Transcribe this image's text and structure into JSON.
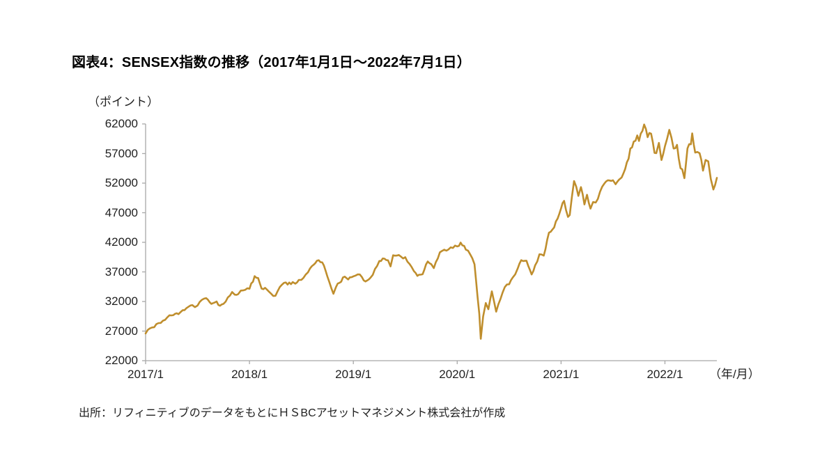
{
  "header": {
    "title": "図表4：SENSEX指数の推移（2017年1月1日～2022年7月1日）"
  },
  "source": "出所：リフィニティブのデータをもとにＨＳBCアセットマネジメント株式会社が作成",
  "chart_data": {
    "type": "line",
    "title": "図表4：SENSEX指数の推移（2017年1月1日～2022年7月1日）",
    "unit_label": "（ポイント）",
    "x_unit_label": "（年/月）",
    "ylim": [
      22000,
      62000
    ],
    "yticks": [
      62000,
      57000,
      52000,
      47000,
      42000,
      37000,
      32000,
      27000,
      22000
    ],
    "xticks": [
      {
        "label": "2017/1",
        "t": 0
      },
      {
        "label": "2018/1",
        "t": 12
      },
      {
        "label": "2019/1",
        "t": 24
      },
      {
        "label": "2020/1",
        "t": 36
      },
      {
        "label": "2021/1",
        "t": 48
      },
      {
        "label": "2022/1",
        "t": 60
      }
    ],
    "x_range_months": [
      0,
      66
    ],
    "x_start": "2017/1",
    "x_end": "2022/7",
    "grid": false,
    "legend": "none",
    "line_color": "#BF8E2D",
    "axis_color": "#A8A8A8",
    "text_color": "#1F1F1F",
    "series": [
      {
        "name": "SENSEX指数",
        "points_format": "[months_since_2017_01, index_points]",
        "points": [
          [
            0,
            26600
          ],
          [
            0.5,
            27460
          ],
          [
            1,
            27660
          ],
          [
            1.5,
            28350
          ],
          [
            2,
            28750
          ],
          [
            2.5,
            29320
          ],
          [
            3,
            29650
          ],
          [
            3.4,
            29920
          ],
          [
            3.8,
            29860
          ],
          [
            4.3,
            30540
          ],
          [
            4.7,
            30860
          ],
          [
            5,
            31150
          ],
          [
            5.4,
            31390
          ],
          [
            5.7,
            31050
          ],
          [
            6,
            31300
          ],
          [
            6.5,
            32280
          ],
          [
            7,
            32570
          ],
          [
            7.4,
            31900
          ],
          [
            7.8,
            31730
          ],
          [
            8.2,
            32000
          ],
          [
            8.6,
            31280
          ],
          [
            9,
            31600
          ],
          [
            9.5,
            32680
          ],
          [
            10,
            33600
          ],
          [
            10.3,
            33150
          ],
          [
            10.7,
            33250
          ],
          [
            11,
            33850
          ],
          [
            11.5,
            33960
          ],
          [
            12,
            34150
          ],
          [
            12.6,
            36280
          ],
          [
            13,
            35960
          ],
          [
            13.4,
            34180
          ],
          [
            14,
            34050
          ],
          [
            14.5,
            33320
          ],
          [
            15,
            32970
          ],
          [
            15.5,
            34430
          ],
          [
            16,
            35160
          ],
          [
            16.4,
            34860
          ],
          [
            17,
            35280
          ],
          [
            17.3,
            35010
          ],
          [
            17.7,
            35650
          ],
          [
            18,
            35660
          ],
          [
            18.5,
            36550
          ],
          [
            19,
            37600
          ],
          [
            19.8,
            38900
          ],
          [
            20.2,
            38650
          ],
          [
            20.6,
            38090
          ],
          [
            21,
            36230
          ],
          [
            21.7,
            33300
          ],
          [
            22,
            34450
          ],
          [
            22.4,
            35150
          ],
          [
            23,
            36200
          ],
          [
            23.4,
            35720
          ],
          [
            24,
            36250
          ],
          [
            24.5,
            36580
          ],
          [
            25,
            36100
          ],
          [
            25.4,
            35380
          ],
          [
            26,
            36050
          ],
          [
            26.5,
            37480
          ],
          [
            27,
            38850
          ],
          [
            27.4,
            39270
          ],
          [
            28,
            38960
          ],
          [
            28.3,
            37930
          ],
          [
            28.6,
            39810
          ],
          [
            29,
            39750
          ],
          [
            29.5,
            39590
          ],
          [
            30,
            39480
          ],
          [
            30.5,
            38340
          ],
          [
            31,
            37120
          ],
          [
            31.4,
            36330
          ],
          [
            32,
            36600
          ],
          [
            32.6,
            38760
          ],
          [
            33,
            38310
          ],
          [
            33.3,
            37650
          ],
          [
            34,
            40300
          ],
          [
            34.5,
            40750
          ],
          [
            35,
            40800
          ],
          [
            35.5,
            41050
          ],
          [
            36,
            41310
          ],
          [
            36.4,
            41950
          ],
          [
            37,
            40750
          ],
          [
            37.5,
            39960
          ],
          [
            38,
            38300
          ],
          [
            38.35,
            32780
          ],
          [
            38.55,
            29920
          ],
          [
            38.72,
            25700
          ],
          [
            39,
            29470
          ],
          [
            39.3,
            31740
          ],
          [
            39.6,
            30690
          ],
          [
            40,
            33720
          ],
          [
            40.5,
            30280
          ],
          [
            41,
            32420
          ],
          [
            41.5,
            34430
          ],
          [
            42,
            34910
          ],
          [
            42.4,
            36020
          ],
          [
            42.7,
            36580
          ],
          [
            43,
            37600
          ],
          [
            43.4,
            38990
          ],
          [
            44,
            38900
          ],
          [
            44.6,
            36560
          ],
          [
            45,
            38100
          ],
          [
            45.5,
            39980
          ],
          [
            46,
            39750
          ],
          [
            46.6,
            43640
          ],
          [
            47,
            44150
          ],
          [
            47.6,
            46010
          ],
          [
            48,
            47750
          ],
          [
            48.35,
            49000
          ],
          [
            48.8,
            46290
          ],
          [
            49,
            46600
          ],
          [
            49.5,
            52350
          ],
          [
            50,
            49850
          ],
          [
            50.3,
            51330
          ],
          [
            50.7,
            48400
          ],
          [
            51,
            50030
          ],
          [
            51.4,
            47700
          ],
          [
            51.7,
            48800
          ],
          [
            52,
            48720
          ],
          [
            52.5,
            50540
          ],
          [
            53,
            51930
          ],
          [
            53.4,
            52480
          ],
          [
            54,
            52480
          ],
          [
            54.3,
            51810
          ],
          [
            54.7,
            52590
          ],
          [
            55,
            52950
          ],
          [
            55.4,
            54370
          ],
          [
            55.8,
            56130
          ],
          [
            56,
            57850
          ],
          [
            56.4,
            59020
          ],
          [
            56.8,
            60060
          ],
          [
            57,
            59130
          ],
          [
            57.6,
            61900
          ],
          [
            58,
            59770
          ],
          [
            58.4,
            60350
          ],
          [
            58.8,
            57110
          ],
          [
            59,
            57060
          ],
          [
            59.3,
            58800
          ],
          [
            59.6,
            55900
          ],
          [
            60,
            58250
          ],
          [
            60.5,
            61000
          ],
          [
            61,
            57850
          ],
          [
            61.4,
            58470
          ],
          [
            61.8,
            54530
          ],
          [
            62,
            54330
          ],
          [
            62.25,
            52840
          ],
          [
            62.6,
            57860
          ],
          [
            63,
            58570
          ],
          [
            63.15,
            60400
          ],
          [
            63.5,
            57170
          ],
          [
            64,
            57060
          ],
          [
            64.4,
            54100
          ],
          [
            64.7,
            55900
          ],
          [
            65,
            55680
          ],
          [
            65.3,
            52700
          ],
          [
            65.6,
            50920
          ],
          [
            65.8,
            51700
          ],
          [
            66,
            52900
          ]
        ]
      }
    ]
  }
}
